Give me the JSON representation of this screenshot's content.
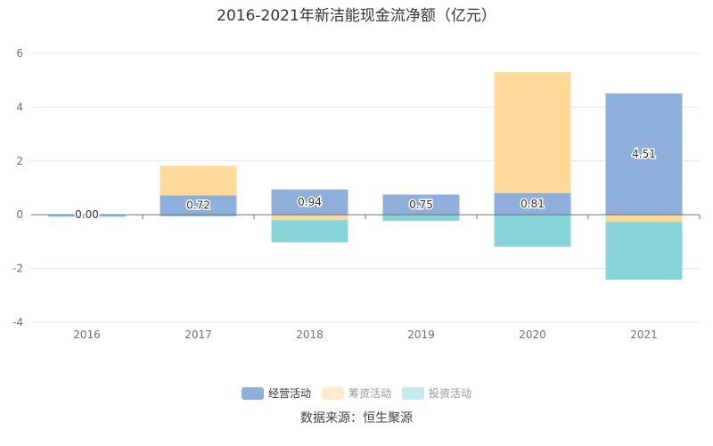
{
  "chart_data": {
    "type": "bar",
    "stacked": true,
    "title": "2016-2021年新洁能现金流净额（亿元）",
    "categories": [
      "2016",
      "2017",
      "2018",
      "2019",
      "2020",
      "2021"
    ],
    "ylim": [
      -4,
      6
    ],
    "yticks": [
      -4,
      -2,
      0,
      2,
      4,
      6
    ],
    "grid": true,
    "legend_position": "bottom",
    "series": [
      {
        "name": "经营活动",
        "color": "#8eaedb",
        "values": [
          0.0,
          0.72,
          0.94,
          0.75,
          0.81,
          4.51
        ],
        "labels": [
          "0.00",
          "0.72",
          "0.94",
          "0.75",
          "0.81",
          "4.51"
        ],
        "legend_active": true
      },
      {
        "name": "筹资活动",
        "color": "#ffd99a",
        "values": [
          0.0,
          1.1,
          -0.2,
          0.0,
          4.49,
          -0.27
        ],
        "legend_active": false
      },
      {
        "name": "投资活动",
        "color": "#88d5d9",
        "values": [
          -0.08,
          -0.05,
          -0.83,
          -0.23,
          -1.19,
          -2.15
        ],
        "legend_active": false
      }
    ]
  },
  "source": "数据来源：恒生聚源"
}
